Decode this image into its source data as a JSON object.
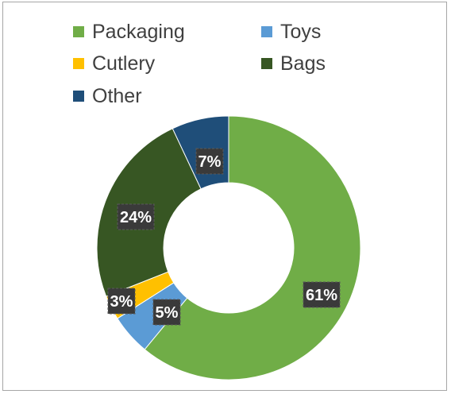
{
  "chart_data": {
    "type": "pie",
    "title": "",
    "categories": [
      "Packaging",
      "Toys",
      "Cutlery",
      "Bags",
      "Other"
    ],
    "values": [
      61,
      5,
      3,
      24,
      7
    ],
    "data_labels": [
      "61%",
      "5%",
      "3%",
      "24%",
      "7%"
    ],
    "colors": [
      "#70ad47",
      "#5b9bd5",
      "#ffc000",
      "#375623",
      "#1f4e79"
    ],
    "donut": true,
    "legend_placement": "top"
  }
}
